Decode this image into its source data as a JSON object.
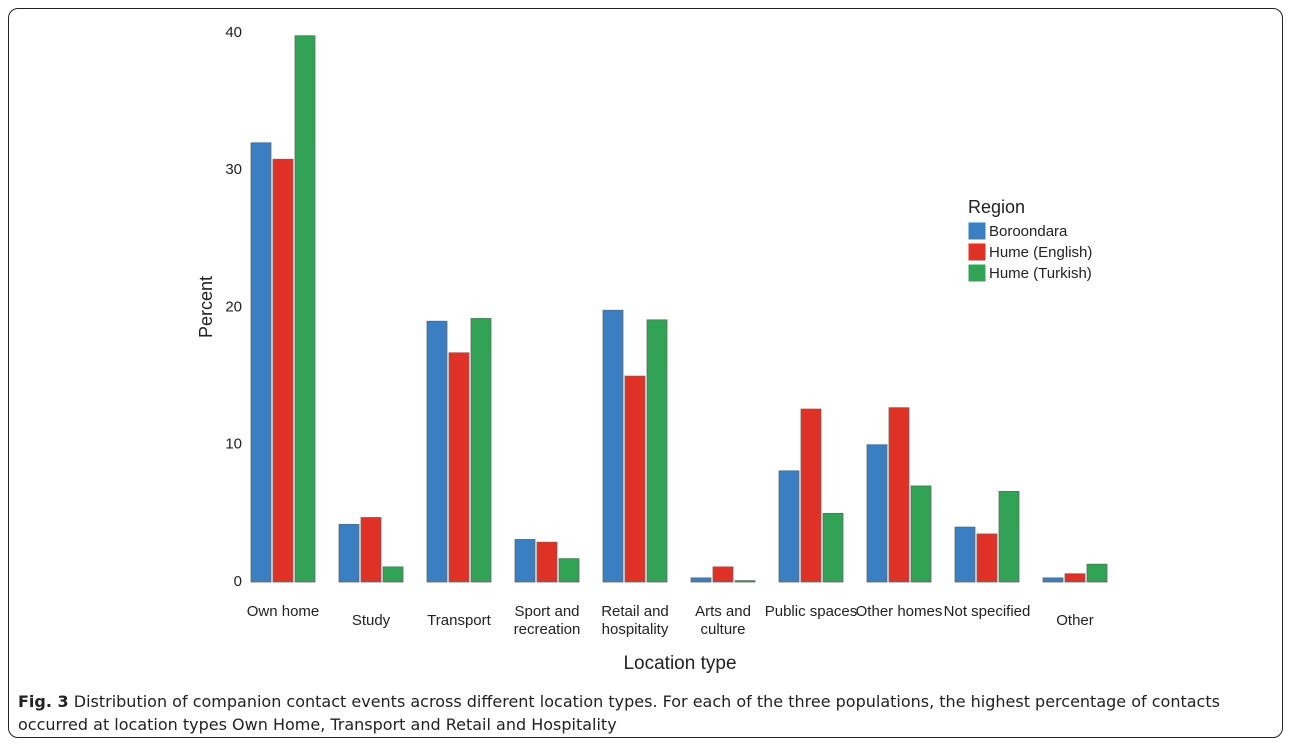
{
  "chart_data": {
    "type": "bar",
    "categories": [
      "Own home",
      "Study",
      "Transport",
      "Sport and recreation",
      "Retail and hospitality",
      "Arts and culture",
      "Public spaces",
      "Other homes",
      "Not specified",
      "Other"
    ],
    "series": [
      {
        "name": "Boroondara",
        "color": "#3a7fc1",
        "values": [
          32.0,
          4.2,
          19.0,
          3.1,
          19.8,
          0.3,
          8.1,
          10.0,
          4.0,
          0.3
        ]
      },
      {
        "name": "Hume (English)",
        "color": "#e03127",
        "values": [
          30.8,
          4.7,
          16.7,
          2.9,
          15.0,
          1.1,
          12.6,
          12.7,
          3.5,
          0.6
        ]
      },
      {
        "name": "Hume (Turkish)",
        "color": "#31a354",
        "values": [
          39.8,
          1.1,
          19.2,
          1.7,
          19.1,
          0.1,
          5.0,
          7.0,
          6.6,
          1.3
        ]
      }
    ],
    "ylim": [
      0,
      40
    ],
    "yticks": [
      0,
      10,
      20,
      30,
      40
    ],
    "x_label": "Location type",
    "y_label": "Percent",
    "legend_title": "Region",
    "legend": "right",
    "grid": false
  },
  "caption": {
    "label": "Fig. 3",
    "text": "Distribution of companion contact events across different location types. For each of the three populations, the highest percentage of contacts occurred at location types Own Home, Transport and Retail and Hospitality"
  }
}
